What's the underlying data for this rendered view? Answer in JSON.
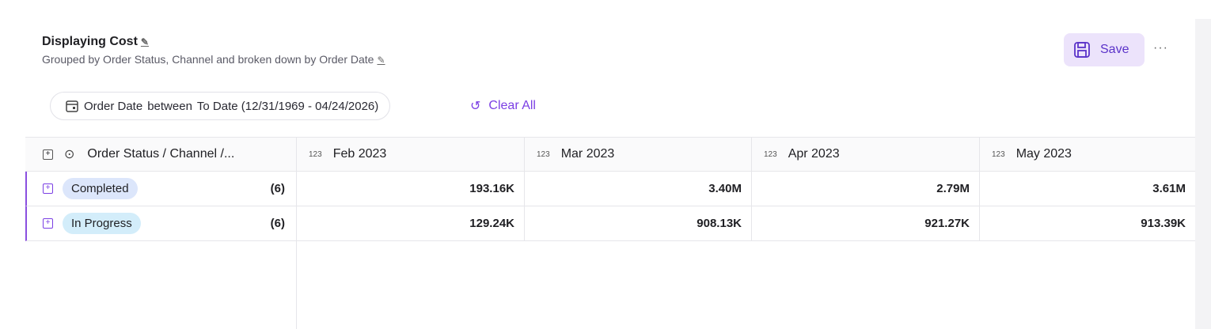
{
  "header": {
    "title": "Displaying Cost",
    "subtitle": "Grouped by Order Status, Channel and broken down by Order Date",
    "save": "Save"
  },
  "filter": {
    "field": "Order Date",
    "operator": "between",
    "value": "To Date (12/31/1969 - 04/24/2026)",
    "clear": "Clear All"
  },
  "table": {
    "group_header": "Order Status / Channel /...",
    "type_label": "123",
    "columns": [
      "Feb 2023",
      "Mar 2023",
      "Apr 2023",
      "May 2023"
    ],
    "rows": [
      {
        "label": "Completed",
        "count": "(6)",
        "values": [
          "193.16K",
          "3.40M",
          "2.79M",
          "3.61M"
        ]
      },
      {
        "label": "In Progress",
        "count": "(6)",
        "values": [
          "129.24K",
          "908.13K",
          "921.27K",
          "913.39K"
        ]
      }
    ]
  }
}
